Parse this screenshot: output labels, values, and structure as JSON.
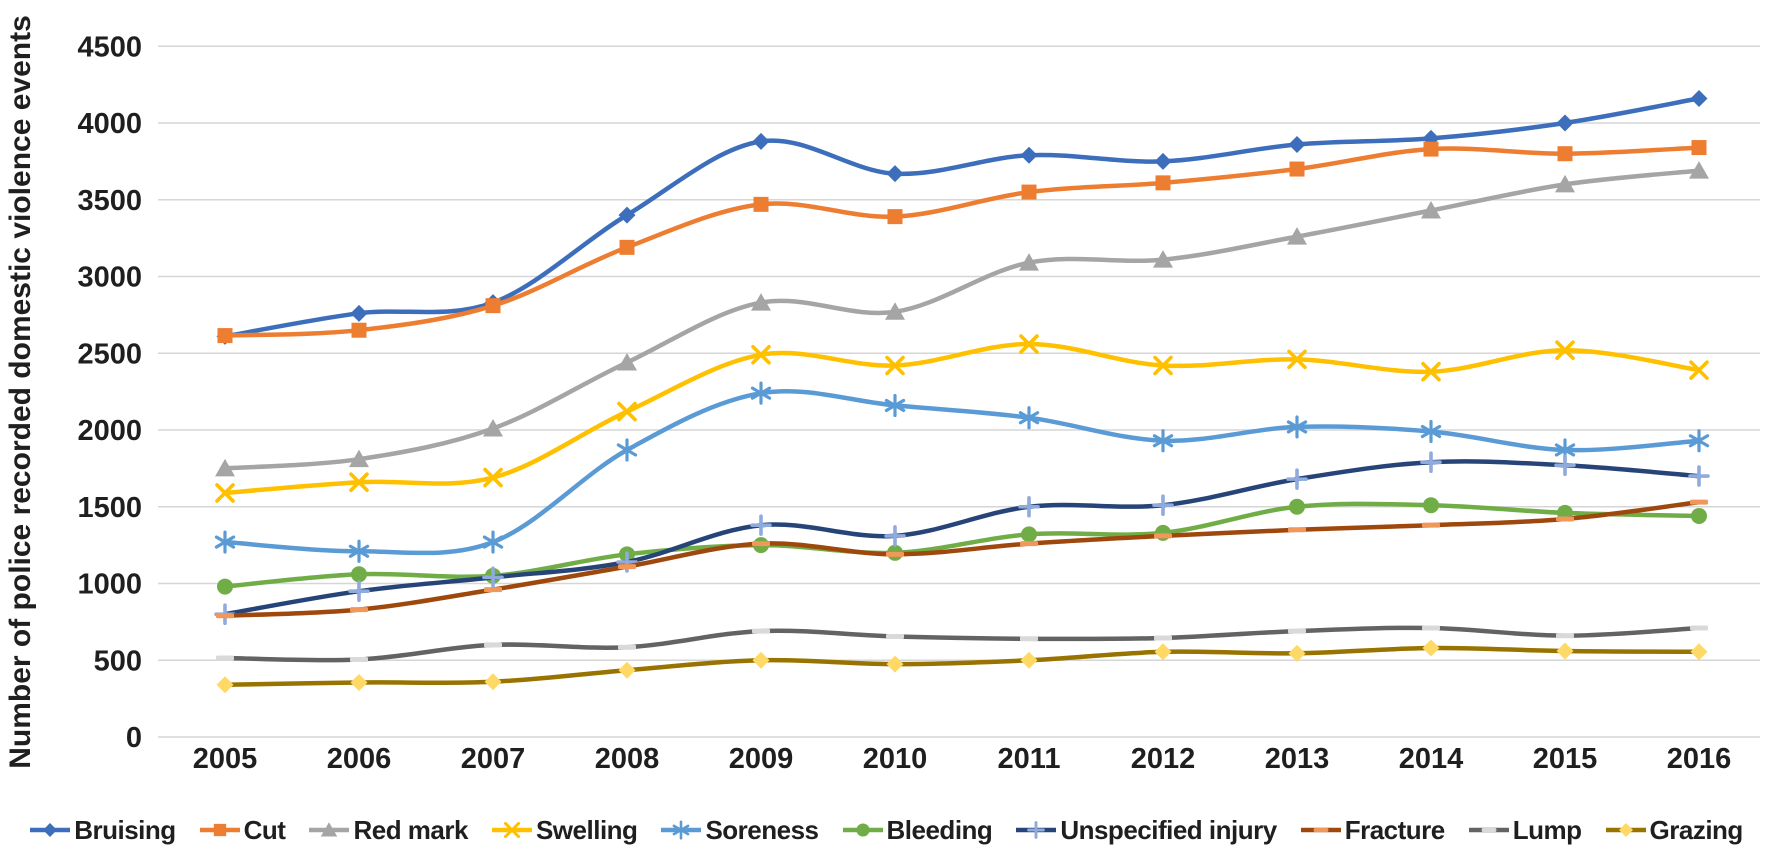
{
  "chart_data": {
    "type": "line",
    "title": "",
    "xlabel": "",
    "ylabel": "Number of police recorded domestic violence events",
    "ylim": [
      0,
      4500
    ],
    "ytick_step": 500,
    "yticks": [
      0,
      500,
      1000,
      1500,
      2000,
      2500,
      3000,
      3500,
      4000,
      4500
    ],
    "grid": "horizontal",
    "gridline_color": "#d6d6d6",
    "axis_text_color": "#1f1f1f",
    "legend_position": "bottom",
    "line_smoothing": true,
    "categories": [
      "2005",
      "2006",
      "2007",
      "2008",
      "2009",
      "2010",
      "2011",
      "2012",
      "2013",
      "2014",
      "2015",
      "2016"
    ],
    "series": [
      {
        "name": "Bruising",
        "color": "#3d6ebc",
        "marker": "diamond",
        "marker_color": "#3d6ebc",
        "values": [
          2610,
          2760,
          2830,
          3400,
          3880,
          3670,
          3790,
          3750,
          3860,
          3900,
          4000,
          4160
        ]
      },
      {
        "name": "Cut",
        "color": "#ed7d31",
        "marker": "square",
        "marker_color": "#ed7d31",
        "values": [
          2615,
          2650,
          2810,
          3190,
          3470,
          3390,
          3550,
          3610,
          3700,
          3830,
          3800,
          3840
        ]
      },
      {
        "name": "Red mark",
        "color": "#a5a5a5",
        "marker": "triangle",
        "marker_color": "#a5a5a5",
        "values": [
          1750,
          1810,
          2010,
          2440,
          2830,
          2770,
          3090,
          3110,
          3260,
          3430,
          3600,
          3690
        ]
      },
      {
        "name": "Swelling",
        "color": "#ffc000",
        "marker": "x",
        "marker_color": "#ffc000",
        "values": [
          1590,
          1660,
          1690,
          2120,
          2490,
          2420,
          2560,
          2420,
          2460,
          2380,
          2520,
          2390
        ]
      },
      {
        "name": "Soreness",
        "color": "#5b9bd5",
        "marker": "asterisk",
        "marker_color": "#5b9bd5",
        "values": [
          1270,
          1210,
          1270,
          1870,
          2240,
          2160,
          2080,
          1930,
          2020,
          1990,
          1870,
          1930
        ]
      },
      {
        "name": "Bleeding",
        "color": "#70ad47",
        "marker": "circle",
        "marker_color": "#70ad47",
        "values": [
          980,
          1060,
          1050,
          1190,
          1250,
          1200,
          1320,
          1330,
          1500,
          1510,
          1460,
          1440
        ]
      },
      {
        "name": "Unspecified injury",
        "color": "#264478",
        "marker": "plus",
        "marker_color": "#8faadc",
        "values": [
          800,
          950,
          1040,
          1140,
          1380,
          1310,
          1500,
          1510,
          1680,
          1790,
          1770,
          1700
        ]
      },
      {
        "name": "Fracture",
        "color": "#9e480e",
        "marker": "dash",
        "marker_color": "#f1975a",
        "values": [
          790,
          830,
          960,
          1110,
          1260,
          1190,
          1260,
          1310,
          1350,
          1380,
          1420,
          1530
        ]
      },
      {
        "name": "Lump",
        "color": "#636363",
        "marker": "dash",
        "marker_color": "#d9d9d9",
        "values": [
          515,
          505,
          600,
          585,
          690,
          655,
          640,
          645,
          690,
          710,
          660,
          710
        ]
      },
      {
        "name": "Grazing",
        "color": "#997300",
        "marker": "diamond",
        "marker_color": "#ffd966",
        "values": [
          340,
          355,
          360,
          435,
          500,
          475,
          500,
          555,
          545,
          580,
          560,
          555
        ]
      }
    ]
  }
}
